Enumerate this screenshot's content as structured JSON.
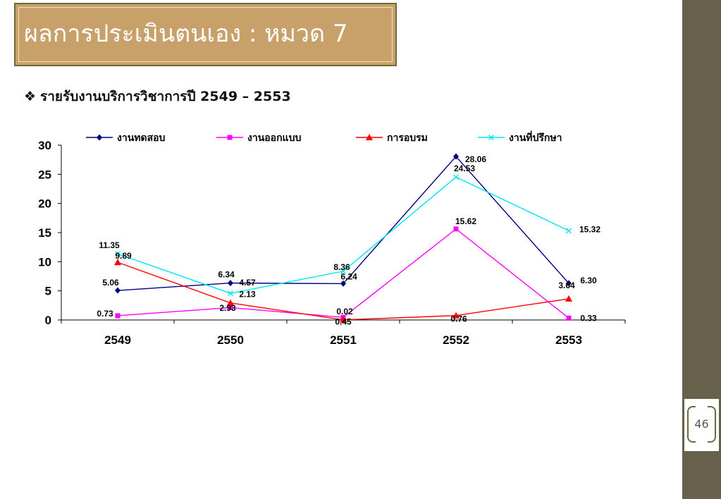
{
  "slide": {
    "title": "ผลการประเมินตนเอง : หมวด 7",
    "bullet": "❖",
    "subtitle": "รายรับงานบริการวิชาการปี  2549 – 2553",
    "page_number": "46"
  },
  "colors": {
    "sidebar": "#67604a",
    "title_bg": "#c8a06a"
  },
  "chart_data": {
    "type": "line",
    "categories": [
      "2549",
      "2550",
      "2551",
      "2552",
      "2553"
    ],
    "ylim": [
      0,
      30
    ],
    "yticks": [
      "0",
      "5",
      "10",
      "15",
      "20",
      "25",
      "30"
    ],
    "legend_position": "top",
    "grid": false,
    "series": [
      {
        "name": "งานทดสอบ",
        "color": "#000080",
        "marker": "diamond",
        "values": [
          5.06,
          6.34,
          6.24,
          28.06,
          6.3
        ],
        "labels": [
          "5.06",
          "6.34",
          "6.24",
          "28.06",
          "6.30"
        ]
      },
      {
        "name": "งานออกแบบ",
        "color": "#ff00ff",
        "marker": "square",
        "values": [
          0.73,
          2.13,
          0.45,
          15.62,
          0.33
        ],
        "labels": [
          "0.73",
          "2.13",
          "0.45",
          "15.62",
          "0.33"
        ]
      },
      {
        "name": "การอบรม",
        "color": "#ff0000",
        "marker": "triangle",
        "values": [
          9.89,
          2.93,
          0.02,
          0.76,
          3.64
        ],
        "labels": [
          "9.89",
          "2.93",
          "0.02",
          "0.76",
          "3.64"
        ]
      },
      {
        "name": "งานที่ปรึกษา",
        "color": "#00e5ee",
        "marker": "x",
        "values": [
          11.35,
          4.57,
          8.36,
          24.53,
          15.32
        ],
        "labels": [
          "11.35",
          "4.57",
          "8.36",
          "24.53",
          "15.32"
        ]
      }
    ]
  }
}
